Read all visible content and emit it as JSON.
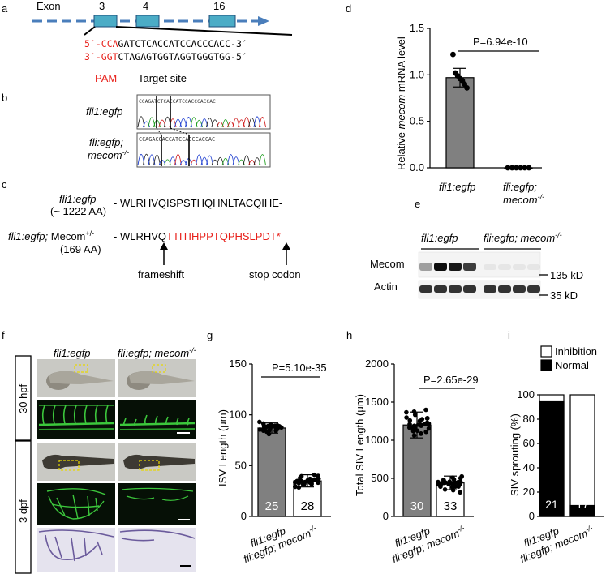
{
  "panel_letters": [
    "a",
    "b",
    "c",
    "d",
    "e",
    "f",
    "g",
    "h",
    "i"
  ],
  "panel_a": {
    "exon_word": "Exon",
    "exon_numbers": [
      "3",
      "4",
      "16"
    ],
    "seq_top_pam": "5′-CCA",
    "seq_top_rest": "GATCTCACCATCCACCCACC-3′",
    "seq_bot_pam": "3′-GGT",
    "seq_bot_rest": "CTAGAGTGGTAGGTGGGTGG-5′",
    "pam": "PAM",
    "target": "Target site"
  },
  "panel_b": {
    "row1": "fli1:egfp",
    "row2a": "fli:egfp;",
    "row2b": "mecom",
    "row2sup": "-/-",
    "trace1_seq": "CCAGATCTCACCATCCACCCACCAC",
    "trace2_seq": "CCAGACCACCATCCACCCACCAC"
  },
  "panel_c": {
    "wt_name": "fli1:egfp",
    "wt_len": "(~ 1222 AA)",
    "wt_seq": "- WLRHVQISPSTHQHNLTACQIHE-",
    "mut_name_it": "fli1:egfp;",
    "mut_name": " Mecom",
    "mut_sup": "+/-",
    "mut_len": "(169 AA)",
    "mut_seq_black": "- WLRHVQ",
    "mut_seq_red": "TTITIHPPTQPHSLPDT*",
    "arrow1": "frameshift",
    "arrow2": "stop codon"
  },
  "panel_d_labels": {
    "ylabel_pre": "Relative ",
    "ylabel_it": "mecom",
    "ylabel_post": " mRNA level",
    "pvalue": "P=6.94e-10",
    "x1": "fli1:egfp",
    "x2a": "fli:egfp;",
    "x2b": "mecom",
    "x2sup": "-/-"
  },
  "panel_e": {
    "group1": "fli1:egfp",
    "group2": "fli:egfp; mecom",
    "group2sup": "-/-",
    "row1": "Mecom",
    "row2": "Actin",
    "mw1": "135 kD",
    "mw2": "35 kD"
  },
  "panel_f": {
    "col1": "fli1:egfp",
    "col2": "fli:egfp; mecom",
    "col2sup": "-/-",
    "stage1": "30 hpf",
    "stage2": "3 dpf"
  },
  "panel_g_labels": {
    "ylabel": "ISV Length (μm)",
    "pvalue": "P=5.10e-35",
    "n1": "25",
    "n2": "28"
  },
  "panel_h_labels": {
    "ylabel": "Total SIV Length (μm)",
    "pvalue": "P=2.65e-29",
    "n1": "30",
    "n2": "33"
  },
  "panel_i_labels": {
    "ylabel": "SIV sprouting (%)",
    "legend1": "Inhibition",
    "legend2": "Normal",
    "n1": "21",
    "n2": "17"
  },
  "xcat": {
    "a": "fli1:egfp",
    "b_it": "fli:egfp; mecom",
    "b_sup": "-/-"
  },
  "chart_data": [
    {
      "type": "bar",
      "ylabel": "Relative mecom mRNA level",
      "categories": [
        "fli1:egfp",
        "fli:egfp; mecom-/-"
      ],
      "values": [
        0.97,
        0.0
      ],
      "errors": [
        0.1,
        0.0
      ],
      "points": [
        [
          1.22,
          1.02,
          0.99,
          0.96,
          0.94,
          0.9,
          0.86
        ],
        [
          0,
          0,
          0,
          0,
          0,
          0
        ]
      ],
      "ylim": [
        0,
        1.5
      ],
      "yticks": [
        "0.0",
        "0.5",
        "1.0",
        "1.5"
      ],
      "colors": [
        "#808080",
        "#ffffff"
      ]
    },
    {
      "type": "bar",
      "ylabel": "ISV Length (μm)",
      "categories": [
        "fli1:egfp",
        "fli:egfp; mecom-/-"
      ],
      "values": [
        87,
        35
      ],
      "errors": [
        5,
        6
      ],
      "n": [
        "25",
        "28"
      ],
      "ylim": [
        0,
        150
      ],
      "yticks": [
        "0",
        "50",
        "100",
        "150"
      ],
      "colors": [
        "#808080",
        "#ffffff"
      ]
    },
    {
      "type": "bar",
      "ylabel": "Total SIV Length (μm)",
      "categories": [
        "fli1:egfp",
        "fli:egfp; mecom-/-"
      ],
      "values": [
        1200,
        440
      ],
      "errors": [
        170,
        90
      ],
      "n": [
        "30",
        "33"
      ],
      "ylim": [
        0,
        2000
      ],
      "yticks": [
        "0",
        "500",
        "1000",
        "1500",
        "2000"
      ],
      "colors": [
        "#808080",
        "#ffffff"
      ]
    },
    {
      "type": "bar",
      "ylabel": "SIV sprouting (%)",
      "categories": [
        "fli1:egfp",
        "fli:egfp; mecom-/-"
      ],
      "series": [
        {
          "name": "Normal",
          "values": [
            95,
            9
          ],
          "color": "#000000"
        },
        {
          "name": "Inhibition",
          "values": [
            5,
            91
          ],
          "color": "#ffffff"
        }
      ],
      "n": [
        "21",
        "17"
      ],
      "ylim": [
        0,
        100
      ],
      "yticks": [
        "0",
        "20",
        "40",
        "60",
        "80",
        "100"
      ]
    }
  ]
}
